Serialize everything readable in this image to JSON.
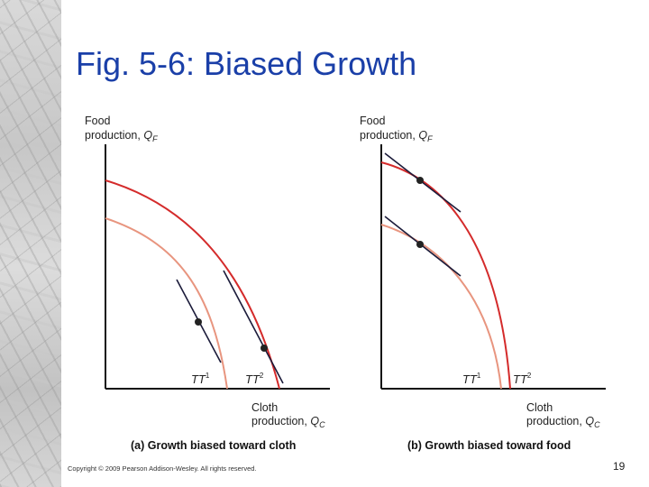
{
  "slide": {
    "title": "Fig. 5-6: Biased Growth",
    "copyright": "Copyright © 2009 Pearson Addison-Wesley. All rights reserved.",
    "page_number": "19"
  },
  "colors": {
    "title": "#1a3fa8",
    "frontier_new": "#d42b2b",
    "frontier_old": "#e8957f",
    "tangent": "#1b1b3a",
    "axis": "#111111"
  },
  "panels": [
    {
      "y_label_line1": "Food",
      "y_label_line2": "production, ",
      "y_var": "Q",
      "y_sub": "F",
      "x_label_line1": "Cloth",
      "x_label_line2": "production, ",
      "x_var": "Q",
      "x_sub": "C",
      "tt1_base": "TT",
      "tt1_sup": "1",
      "tt2_base": "TT",
      "tt2_sup": "2",
      "caption": "(a) Growth biased toward cloth"
    },
    {
      "y_label_line1": "Food",
      "y_label_line2": "production, ",
      "y_var": "Q",
      "y_sub": "F",
      "x_label_line1": "Cloth",
      "x_label_line2": "production, ",
      "x_var": "Q",
      "x_sub": "C",
      "tt1_base": "TT",
      "tt1_sup": "1",
      "tt2_base": "TT",
      "tt2_sup": "2",
      "caption": "(b) Growth biased toward food"
    }
  ]
}
